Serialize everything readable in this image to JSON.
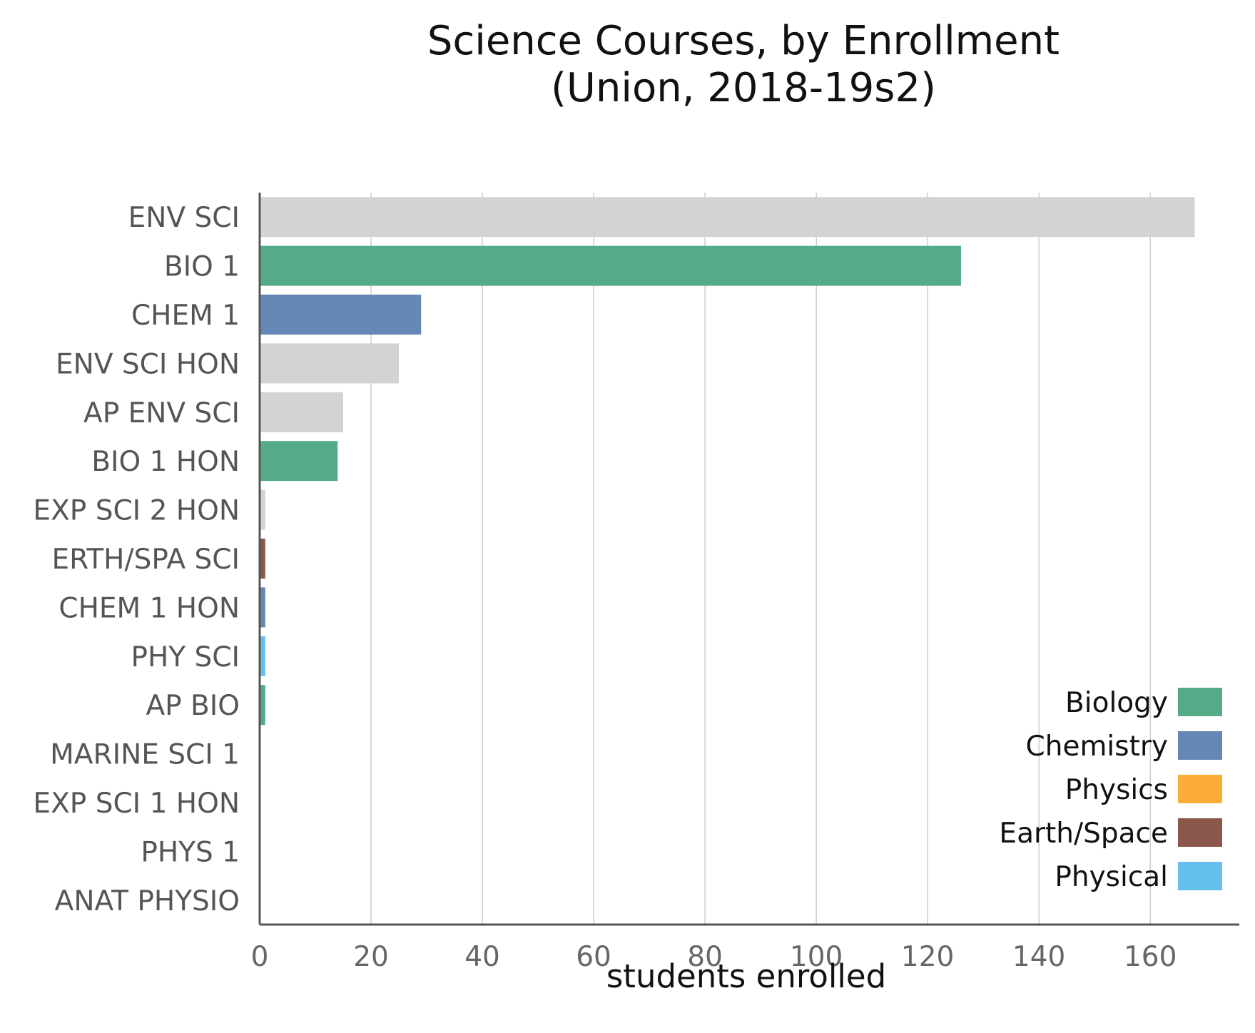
{
  "chart_data": {
    "type": "bar",
    "orientation": "horizontal",
    "title": [
      "Science Courses, by Enrollment",
      "(Union, 2018-19s2)"
    ],
    "xlabel": "students enrolled",
    "ylabel": "",
    "xlim": [
      0,
      176
    ],
    "xticks": [
      0,
      20,
      40,
      60,
      80,
      100,
      120,
      140,
      160
    ],
    "grid": "vertical",
    "legend_position": "bottom-right",
    "categories": [
      "ENV SCI",
      "BIO 1",
      "CHEM 1",
      "ENV SCI HON",
      "AP ENV SCI",
      "BIO 1 HON",
      "EXP SCI 2 HON",
      "ERTH/SPA SCI",
      "CHEM 1 HON",
      "PHY SCI",
      "AP BIO",
      "MARINE SCI 1",
      "EXP SCI 1 HON",
      "PHYS 1",
      "ANAT PHYSIO"
    ],
    "values": [
      168,
      126,
      29,
      25,
      15,
      14,
      1,
      1,
      1,
      1,
      1,
      0,
      0,
      0,
      0
    ],
    "bar_groups": [
      "Other",
      "Biology",
      "Chemistry",
      "Other",
      "Other",
      "Biology",
      "Other",
      "Earth/Space",
      "Chemistry",
      "Physical",
      "Biology",
      "Biology",
      "Other",
      "Physics",
      "Biology"
    ],
    "legend": [
      {
        "name": "Biology",
        "color": "#55ab87"
      },
      {
        "name": "Chemistry",
        "color": "#6487b4"
      },
      {
        "name": "Physics",
        "color": "#fbad37"
      },
      {
        "name": "Earth/Space",
        "color": "#8c574b"
      },
      {
        "name": "Physical",
        "color": "#64bfec"
      }
    ],
    "colors": {
      "Biology": "#55ab87",
      "Chemistry": "#6487b4",
      "Physics": "#fbad37",
      "Earth/Space": "#8c574b",
      "Physical": "#64bfec",
      "Other": "#d3d3d3",
      "grid": "#b4b4b4",
      "axis": "#555555"
    }
  }
}
